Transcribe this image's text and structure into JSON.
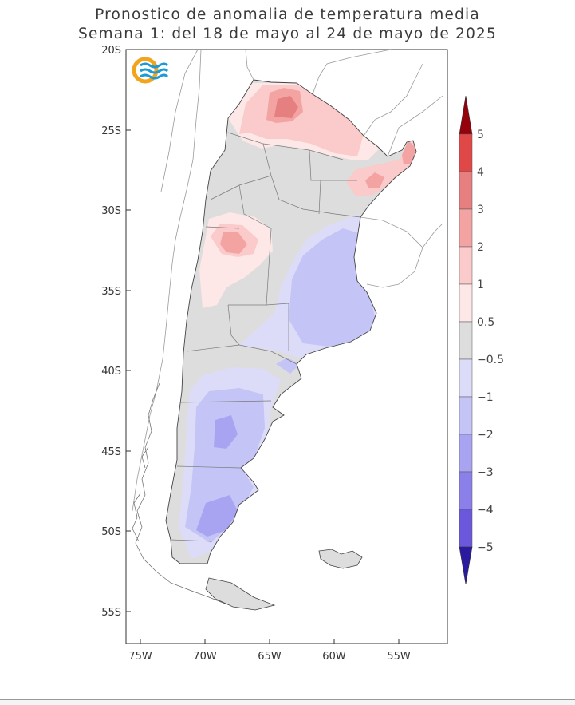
{
  "title_line1": "Pronostico de anomalia de temperatura media",
  "title_line2": "Semana 1: del 18 de mayo al 24 de mayo de 2025",
  "logo": {
    "icon": "smn-logo-icon",
    "colors": {
      "sun": "#f2a51c",
      "waves": "#1a9ad6"
    }
  },
  "axes": {
    "lat_labels": [
      "20S",
      "25S",
      "30S",
      "35S",
      "40S",
      "45S",
      "50S",
      "55S"
    ],
    "lon_labels": [
      "75W",
      "70W",
      "65W",
      "60W",
      "55W"
    ],
    "lat_range": [
      -57,
      -20
    ],
    "lon_range": [
      -76,
      -51
    ]
  },
  "colorbar": {
    "labels": [
      "5",
      "4",
      "3",
      "2",
      "1",
      "0.5",
      "−0.5",
      "−1",
      "−2",
      "−3",
      "−4",
      "−5"
    ],
    "colors": [
      "#96000b",
      "#e04848",
      "#e67f7f",
      "#f4a3a3",
      "#fbcaca",
      "#fde7e7",
      "#dddddd",
      "#dcdcf8",
      "#c4c4f6",
      "#a9a4f2",
      "#8b80ea",
      "#6b57dc",
      "#4633c6",
      "#2a1aa0"
    ]
  },
  "colors": {
    "neutral": "#dddddd",
    "borders": "#808080",
    "coast": "#555555"
  }
}
